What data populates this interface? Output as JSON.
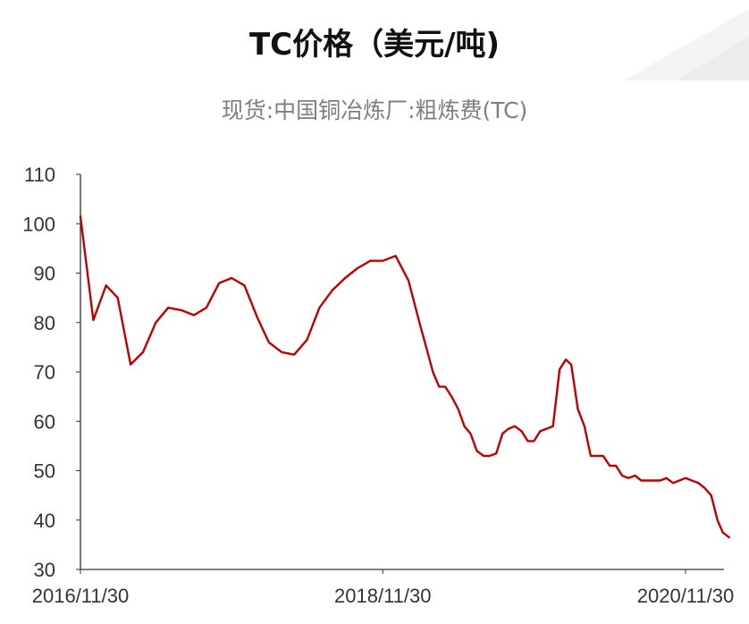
{
  "chart_data": {
    "type": "line",
    "title": "TC价格（美元/吨)",
    "subtitle": "现货:中国铜冶炼厂:粗炼费(TC)",
    "xlabel": "",
    "ylabel": "",
    "ylim": [
      30,
      110
    ],
    "yticks": [
      "110",
      "100",
      "90",
      "80",
      "70",
      "60",
      "50",
      "40",
      "30"
    ],
    "xticks": [
      "2016/11/30",
      "2018/11/30",
      "2020/11/30"
    ],
    "xrange": [
      "2016-11-30",
      "2021-03-15"
    ],
    "grid": false,
    "line_color": "#c00000",
    "series": [
      {
        "x": [
          "2016-11-30",
          "2016-12-31",
          "2017-01-31",
          "2017-02-28",
          "2017-03-31",
          "2017-04-30",
          "2017-05-31",
          "2017-06-30",
          "2017-07-31",
          "2017-08-31",
          "2017-09-30",
          "2017-10-31",
          "2017-11-30",
          "2017-12-31",
          "2018-01-31",
          "2018-02-28",
          "2018-03-31",
          "2018-04-30",
          "2018-05-31",
          "2018-06-30",
          "2018-07-31",
          "2018-08-31",
          "2018-09-30",
          "2018-10-31",
          "2018-11-30",
          "2018-12-31",
          "2019-01-31",
          "2019-02-28",
          "2019-03-15",
          "2019-03-31",
          "2019-04-15",
          "2019-04-30",
          "2019-05-15",
          "2019-05-31",
          "2019-06-15",
          "2019-06-30",
          "2019-07-15",
          "2019-07-31",
          "2019-08-15",
          "2019-08-31",
          "2019-09-15",
          "2019-09-30",
          "2019-10-15",
          "2019-10-31",
          "2019-11-15",
          "2019-11-30",
          "2019-12-15",
          "2019-12-31",
          "2020-01-15",
          "2020-01-31",
          "2020-02-15",
          "2020-02-28",
          "2020-03-15",
          "2020-03-31",
          "2020-04-15",
          "2020-04-30",
          "2020-05-15",
          "2020-05-31",
          "2020-06-15",
          "2020-06-30",
          "2020-07-15",
          "2020-07-31",
          "2020-08-15",
          "2020-08-31",
          "2020-09-15",
          "2020-09-30",
          "2020-10-15",
          "2020-10-31",
          "2020-11-15",
          "2020-11-30",
          "2020-12-15",
          "2020-12-31",
          "2021-01-15",
          "2021-01-31",
          "2021-02-15",
          "2021-02-28",
          "2021-03-15"
        ],
        "y": [
          101.5,
          80.5,
          87.5,
          85,
          71.5,
          74,
          80,
          83,
          82.5,
          81.5,
          83,
          88,
          89,
          87.5,
          81,
          76,
          74,
          73.5,
          76.5,
          83,
          86.5,
          89,
          91,
          92.5,
          92.5,
          93.5,
          88.5,
          79.5,
          75,
          70,
          67,
          67,
          65,
          62.5,
          59,
          57.5,
          54,
          53,
          53,
          53.5,
          57.5,
          58.5,
          59,
          58,
          56,
          56,
          58,
          58.5,
          59,
          70.5,
          72.5,
          71.5,
          62.5,
          59,
          53,
          53,
          53,
          51,
          51,
          49,
          48.5,
          49,
          48,
          48,
          48,
          48,
          48.5,
          47.5,
          48,
          48.5,
          48,
          47.5,
          46.5,
          45,
          40,
          37.5,
          36.5
        ]
      }
    ]
  }
}
